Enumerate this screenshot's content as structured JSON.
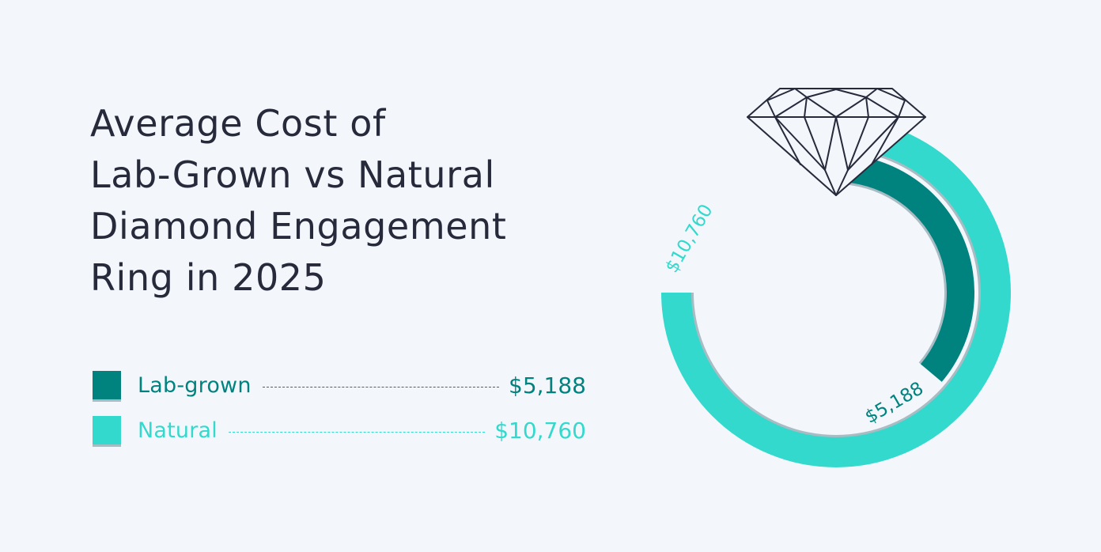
{
  "title": {
    "lines": [
      "Average Cost of",
      "Lab-Grown vs Natural",
      "Diamond Engagement",
      "Ring in 2025"
    ]
  },
  "legend": [
    {
      "label": "Lab-grown",
      "value": "$5,188",
      "color": "#00837f"
    },
    {
      "label": "Natural",
      "value": "$10,760",
      "color": "#33d9cc"
    }
  ],
  "ring_labels": {
    "natural": "$10,760",
    "lab_grown": "$5,188"
  },
  "colors": {
    "background": "#f3f7fc",
    "title": "#262a3b",
    "lab_grown": "#00837f",
    "natural": "#33d9cc",
    "shadow": "#a9bcc4",
    "diamond_stroke": "#262a3b"
  },
  "chart_data": {
    "type": "radial-bar",
    "title": "Average Cost of Lab-Grown vs Natural Diamond Engagement Ring in 2025",
    "categories": [
      "Lab-grown",
      "Natural"
    ],
    "values": [
      5188,
      10760
    ],
    "value_labels": [
      "$5,188",
      "$10,760"
    ],
    "units": "USD",
    "max_arc_degrees": 270,
    "legend_position": "left"
  }
}
